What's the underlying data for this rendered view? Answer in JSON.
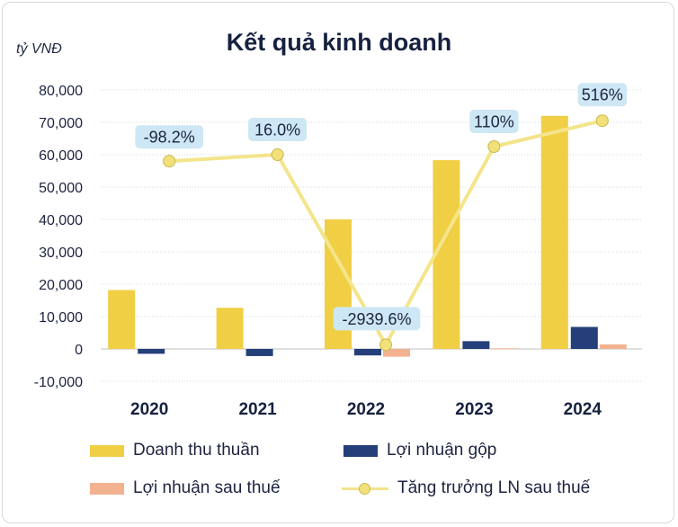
{
  "unit_label": "tỷ VNĐ",
  "title": "Kết quả kinh doanh",
  "colors": {
    "revenue": "#f0cf45",
    "gross_profit": "#243f7a",
    "net_profit": "#f2b28f",
    "growth_line": "#f4e48a",
    "growth_marker": "#f2e07a",
    "label_box": "#cde7f5"
  },
  "chart_data": {
    "type": "bar",
    "categories": [
      "2020",
      "2021",
      "2022",
      "2023",
      "2024"
    ],
    "ylim": [
      -10000,
      80000
    ],
    "yticks": [
      "-10,000",
      "0",
      "10,000",
      "20,000",
      "30,000",
      "40,000",
      "50,000",
      "60,000",
      "70,000",
      "80,000"
    ],
    "grid": true,
    "legend_position": "bottom",
    "series": [
      {
        "name": "Doanh thu thuần",
        "type": "bar",
        "values": [
          18200,
          12700,
          40000,
          58300,
          72000
        ]
      },
      {
        "name": "Lợi nhuận gộp",
        "type": "bar",
        "values": [
          -1500,
          -2200,
          -2000,
          2400,
          6800
        ]
      },
      {
        "name": "Lợi nhuận sau thuế",
        "type": "bar",
        "values": [
          0,
          0,
          -2400,
          200,
          1400
        ]
      },
      {
        "name": "Tăng trưởng LN sau thuế",
        "type": "line",
        "values_positioned_on_axis": [
          58000,
          60000,
          1300,
          62500,
          70500
        ],
        "labels": [
          "-98.2%",
          "16.0%",
          "-2939.6%",
          "110%",
          "516%"
        ]
      }
    ]
  }
}
